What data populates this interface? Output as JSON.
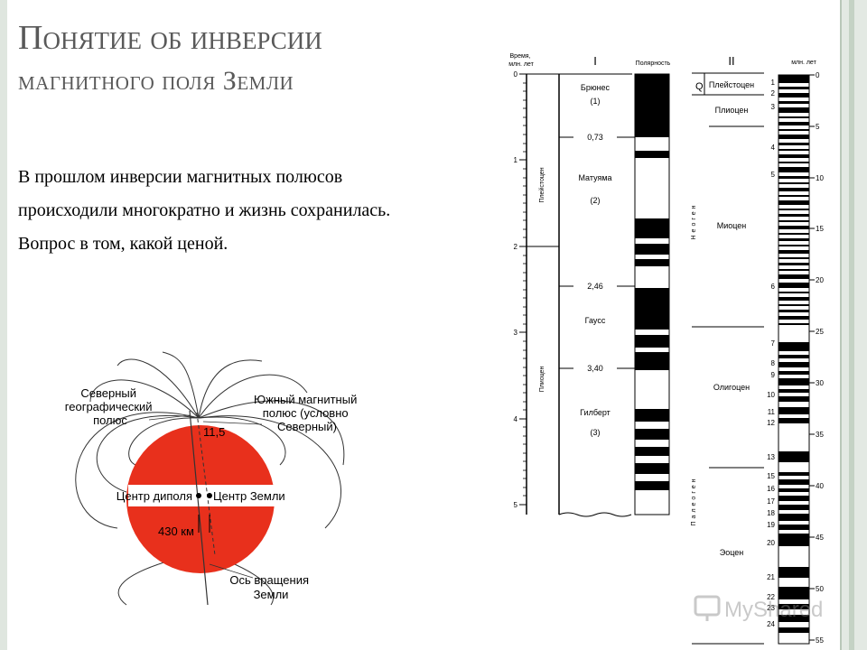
{
  "slide": {
    "title_line1": "Понятие об инверсии",
    "title_line2": "магнитного поля Земли",
    "paragraph": [
      "В прошлом инверсии магнитных полюсов",
      "происходили многократно и жизнь сохранилась.",
      "Вопрос в том, какой ценой."
    ]
  },
  "globe_figure": {
    "north_geo_label": [
      "Северный",
      "географический",
      "полюс"
    ],
    "south_mag_label": [
      "Южный магнитный",
      "полюс (условно",
      "Северный)"
    ],
    "angle_label": "11,5",
    "dipole_center_label": "Центр диполя",
    "earth_center_label": "Центр Земли",
    "distance_label": "430 км",
    "rotation_axis_label": [
      "Ось вращения",
      "Земли"
    ],
    "sphere_color": "#e8301c"
  },
  "column_one": {
    "header_time": [
      "Время,",
      "млн. лет"
    ],
    "header_numeral": "I",
    "header_polarity": "Полярность",
    "ticks": [
      "0",
      "1",
      "2",
      "3",
      "4",
      "5"
    ],
    "era_labels": [
      "Плейстоцен",
      "Плиоцен"
    ],
    "epochs": [
      {
        "name": "Брюнес",
        "num": "(1)"
      },
      {
        "name": "Матуяма",
        "num": "(2)"
      },
      {
        "name": "Гаусс",
        "num": ""
      },
      {
        "name": "Гилберт",
        "num": "(3)"
      }
    ],
    "boundaries": [
      "0,73",
      "2,46",
      "3,40"
    ]
  },
  "column_two": {
    "header_numeral": "II",
    "header_time": "млн. лет",
    "quaternary": "Q",
    "epochs": [
      "Плейстоцен",
      "Плиоцен",
      "Миоцен",
      "Олигоцен",
      "Эоцен"
    ],
    "periods": [
      "Неоген",
      "Палеоген"
    ],
    "age_ticks": [
      "0",
      "5",
      "10",
      "15",
      "20",
      "25",
      "30",
      "35",
      "40",
      "45",
      "50",
      "55"
    ],
    "anomaly_numbers": [
      "1",
      "2",
      "3",
      "4",
      "5",
      "6",
      "7",
      "8",
      "9",
      "10",
      "11",
      "12",
      "13",
      "15",
      "16",
      "17",
      "18",
      "19",
      "20",
      "21",
      "22",
      "23",
      "24"
    ]
  },
  "watermark": "MyShared"
}
